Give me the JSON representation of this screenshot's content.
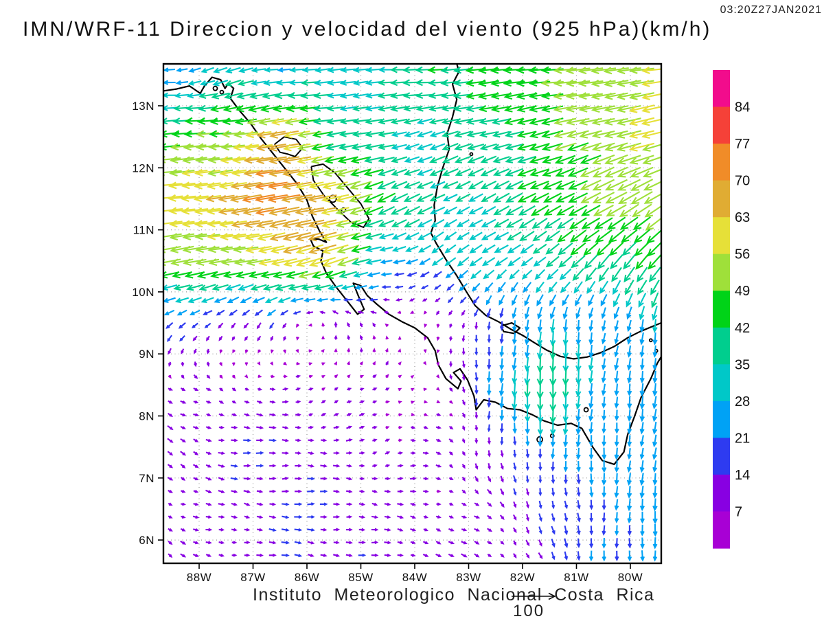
{
  "header": {
    "timestamp": "03:20Z27JAN2021",
    "title": "IMN/WRF-11 Direccion y velocidad del viento (925 hPa)(km/h)"
  },
  "footer": {
    "caption": "Instituto Meteorologico Nacional Costa Rica",
    "reference_value": "100"
  },
  "axes": {
    "x_ticks": [
      "88W",
      "87W",
      "86W",
      "85W",
      "84W",
      "83W",
      "82W",
      "81W",
      "80W"
    ],
    "x_tick_lons": [
      -88,
      -87,
      -86,
      -85,
      -84,
      -83,
      -82,
      -81,
      -80
    ],
    "y_ticks": [
      "13N",
      "12N",
      "11N",
      "10N",
      "9N",
      "8N",
      "7N",
      "6N"
    ],
    "y_tick_lats": [
      13,
      12,
      11,
      10,
      9,
      8,
      7,
      6
    ]
  },
  "colorbar": {
    "labels": [
      "84",
      "77",
      "70",
      "63",
      "56",
      "49",
      "42",
      "35",
      "28",
      "21",
      "14",
      "7"
    ],
    "colors_top_to_bottom": [
      "#F20C8C",
      "#F54138",
      "#F08C28",
      "#E0AC33",
      "#E6E038",
      "#9FE03A",
      "#00D318",
      "#00CE8E",
      "#00C8C8",
      "#00A2F5",
      "#2E3BF0",
      "#8800E2",
      "#A800D5"
    ]
  },
  "chart_data": {
    "type": "vector_field",
    "title": "IMN/WRF-11 Direccion y velocidad del viento (925 hPa)(km/h)",
    "valid_time": "03:20Z27JAN2021",
    "units": "km/h",
    "level": "925 hPa",
    "reference_arrow_kmh": 100,
    "speed_bins_kmh": [
      7,
      14,
      21,
      28,
      35,
      42,
      49,
      56,
      63,
      70,
      77,
      84
    ],
    "speed_colors_low_to_high": [
      "#A800D5",
      "#8800E2",
      "#2E3BF0",
      "#00A2F5",
      "#00C8C8",
      "#00CE8E",
      "#00D318",
      "#9FE03A",
      "#E6E038",
      "#E0AC33",
      "#F08C28",
      "#F54138",
      "#F20C8C"
    ],
    "extent": {
      "lon": [
        -88.66,
        -79.43
      ],
      "lat": [
        5.62,
        13.68
      ]
    },
    "grid": {
      "lons": [
        -88.5,
        -87.5,
        -86.5,
        -85.5,
        -84.5,
        -83.5,
        -82.5,
        -81.5,
        -80.5,
        -79.5
      ],
      "lats": [
        13.5,
        12.5,
        11.5,
        10.5,
        9.5,
        8.5,
        7.5,
        6.5,
        5.5
      ],
      "u_kmh": [
        [
          -24,
          -30,
          -30,
          -32,
          -35,
          -42,
          -45,
          -50,
          -54,
          -56
        ],
        [
          -45,
          -50,
          -66,
          -40,
          -33,
          -33,
          -38,
          -44,
          -51,
          -55
        ],
        [
          -60,
          -64,
          -74,
          -60,
          -40,
          -30,
          -33,
          -40,
          -45,
          -48
        ],
        [
          -52,
          -49,
          -58,
          -58,
          -24,
          -24,
          -26,
          -28,
          -28,
          -28
        ],
        [
          -13,
          -11,
          -6,
          -2,
          -4,
          0,
          -3,
          -2,
          -5,
          -3
        ],
        [
          7,
          7,
          8,
          7,
          5,
          3,
          -1,
          -2,
          -2,
          -4
        ],
        [
          9,
          13,
          14,
          10,
          9,
          8,
          0,
          0,
          -2,
          -3
        ],
        [
          9,
          10,
          14,
          13,
          10,
          9,
          7,
          4,
          0,
          -2
        ],
        [
          7,
          10,
          13,
          13,
          12,
          10,
          8,
          5,
          1,
          -1
        ]
      ],
      "v_kmh": [
        [
          -2,
          -10,
          -3,
          -2,
          -2,
          -3,
          -4,
          -5,
          -6,
          -7
        ],
        [
          -3,
          -5,
          -10,
          -8,
          -6,
          -10,
          -10,
          -11,
          -13,
          -15
        ],
        [
          -7,
          -8,
          -13,
          -12,
          -18,
          -16,
          -17,
          -20,
          -24,
          -26
        ],
        [
          -8,
          -7,
          -12,
          -18,
          -5,
          -16,
          -18,
          -22,
          -30,
          -35
        ],
        [
          -12,
          -11,
          -10,
          8,
          5,
          -6,
          -19,
          -26,
          -23,
          -28
        ],
        [
          -5,
          -3,
          -1,
          5,
          4,
          -4,
          -24,
          -46,
          -23,
          -26
        ],
        [
          -7,
          -2,
          0,
          0,
          2,
          -2,
          -15,
          -22,
          -24,
          -26
        ],
        [
          -4,
          -2,
          -1,
          -1,
          -1,
          -3,
          -7,
          -15,
          -22,
          -25
        ],
        [
          -5,
          -2,
          -1,
          -2,
          -2,
          -3,
          -6,
          -14,
          -20,
          -24
        ]
      ]
    }
  },
  "map": {
    "coastlines": [
      [
        [
          -88.66,
          13.24
        ],
        [
          -88.42,
          13.27
        ],
        [
          -88.18,
          13.32
        ],
        [
          -87.98,
          13.2
        ],
        [
          -87.9,
          13.32
        ],
        [
          -87.76,
          13.46
        ],
        [
          -87.6,
          13.42
        ],
        [
          -87.52,
          13.28
        ],
        [
          -87.46,
          13.36
        ],
        [
          -87.36,
          13.28
        ],
        [
          -87.42,
          13.12
        ],
        [
          -87.25,
          12.92
        ],
        [
          -87.05,
          12.72
        ],
        [
          -86.85,
          12.47
        ],
        [
          -86.62,
          12.22
        ],
        [
          -86.4,
          11.98
        ],
        [
          -86.18,
          11.74
        ],
        [
          -86.0,
          11.48
        ],
        [
          -85.9,
          11.22
        ],
        [
          -85.76,
          10.97
        ],
        [
          -85.64,
          10.8
        ],
        [
          -85.78,
          10.85
        ],
        [
          -85.94,
          10.86
        ],
        [
          -85.88,
          10.74
        ],
        [
          -85.7,
          10.66
        ],
        [
          -85.74,
          10.5
        ],
        [
          -85.64,
          10.3
        ],
        [
          -85.46,
          10.08
        ],
        [
          -85.26,
          9.86
        ],
        [
          -85.06,
          9.64
        ],
        [
          -84.94,
          9.72
        ],
        [
          -85.04,
          9.92
        ],
        [
          -85.14,
          10.14
        ],
        [
          -85.0,
          10.1
        ],
        [
          -84.88,
          9.94
        ],
        [
          -84.7,
          9.8
        ],
        [
          -84.48,
          9.64
        ],
        [
          -84.24,
          9.52
        ],
        [
          -84.0,
          9.42
        ],
        [
          -83.76,
          9.26
        ],
        [
          -83.62,
          9.05
        ],
        [
          -83.56,
          8.82
        ],
        [
          -83.42,
          8.6
        ],
        [
          -83.2,
          8.44
        ],
        [
          -83.14,
          8.56
        ],
        [
          -83.28,
          8.7
        ],
        [
          -83.16,
          8.76
        ],
        [
          -83.02,
          8.58
        ],
        [
          -82.9,
          8.32
        ],
        [
          -82.86,
          8.1
        ],
        [
          -82.72,
          8.26
        ],
        [
          -82.5,
          8.22
        ],
        [
          -82.28,
          8.12
        ],
        [
          -82.05,
          8.1
        ],
        [
          -81.82,
          8.02
        ],
        [
          -81.6,
          7.92
        ],
        [
          -81.35,
          7.85
        ],
        [
          -81.1,
          7.88
        ],
        [
          -80.9,
          7.8
        ],
        [
          -80.7,
          7.5
        ],
        [
          -80.52,
          7.28
        ],
        [
          -80.3,
          7.22
        ],
        [
          -80.12,
          7.42
        ],
        [
          -80.05,
          7.7
        ],
        [
          -79.92,
          8.0
        ],
        [
          -79.8,
          8.3
        ],
        [
          -79.62,
          8.6
        ],
        [
          -79.5,
          8.85
        ],
        [
          -79.43,
          8.95
        ]
      ],
      [
        [
          -79.43,
          9.5
        ],
        [
          -79.6,
          9.44
        ],
        [
          -79.82,
          9.36
        ],
        [
          -80.05,
          9.26
        ],
        [
          -80.3,
          9.12
        ],
        [
          -80.55,
          9.02
        ],
        [
          -80.8,
          8.95
        ],
        [
          -81.05,
          8.92
        ],
        [
          -81.3,
          8.96
        ],
        [
          -81.55,
          9.06
        ],
        [
          -81.78,
          9.18
        ],
        [
          -82.0,
          9.3
        ],
        [
          -82.22,
          9.4
        ],
        [
          -82.45,
          9.52
        ],
        [
          -82.68,
          9.62
        ],
        [
          -82.88,
          9.78
        ],
        [
          -83.04,
          10.0
        ],
        [
          -83.22,
          10.26
        ],
        [
          -83.42,
          10.52
        ],
        [
          -83.6,
          10.78
        ],
        [
          -83.7,
          10.95
        ],
        [
          -83.62,
          11.15
        ],
        [
          -83.64,
          11.4
        ],
        [
          -83.58,
          11.7
        ],
        [
          -83.48,
          12.0
        ],
        [
          -83.36,
          12.3
        ],
        [
          -83.4,
          12.55
        ],
        [
          -83.3,
          12.82
        ],
        [
          -83.22,
          13.1
        ],
        [
          -83.3,
          13.35
        ],
        [
          -83.18,
          13.55
        ],
        [
          -83.22,
          13.68
        ]
      ],
      [
        [
          -82.4,
          9.45
        ],
        [
          -82.2,
          9.5
        ],
        [
          -82.05,
          9.42
        ],
        [
          -82.15,
          9.33
        ],
        [
          -82.35,
          9.36
        ],
        [
          -82.4,
          9.45
        ]
      ]
    ],
    "lakes": [
      [
        [
          -86.6,
          12.38
        ],
        [
          -86.42,
          12.5
        ],
        [
          -86.2,
          12.46
        ],
        [
          -86.08,
          12.32
        ],
        [
          -86.22,
          12.18
        ],
        [
          -86.35,
          12.22
        ],
        [
          -86.5,
          12.25
        ],
        [
          -86.6,
          12.38
        ]
      ],
      [
        [
          -85.92,
          12.02
        ],
        [
          -85.7,
          12.06
        ],
        [
          -85.48,
          11.92
        ],
        [
          -85.25,
          11.68
        ],
        [
          -85.0,
          11.42
        ],
        [
          -84.85,
          11.18
        ],
        [
          -84.95,
          11.04
        ],
        [
          -85.18,
          11.12
        ],
        [
          -85.42,
          11.32
        ],
        [
          -85.68,
          11.55
        ],
        [
          -85.88,
          11.8
        ],
        [
          -85.92,
          12.02
        ]
      ]
    ],
    "islands": [
      {
        "lon": -87.7,
        "lat": 13.28,
        "r": 3
      },
      {
        "lon": -87.58,
        "lat": 13.22,
        "r": 2.5
      },
      {
        "lon": -85.52,
        "lat": 11.5,
        "r": 5
      },
      {
        "lon": -85.32,
        "lat": 11.32,
        "r": 3
      },
      {
        "lon": -82.95,
        "lat": 12.22,
        "r": 2
      },
      {
        "lon": -81.68,
        "lat": 7.62,
        "r": 4
      },
      {
        "lon": -81.45,
        "lat": 7.68,
        "r": 2.5
      },
      {
        "lon": -80.82,
        "lat": 8.1,
        "r": 3
      },
      {
        "lon": -79.62,
        "lat": 9.22,
        "r": 2
      },
      {
        "lon": -79.52,
        "lat": 9.05,
        "r": 2
      }
    ]
  }
}
